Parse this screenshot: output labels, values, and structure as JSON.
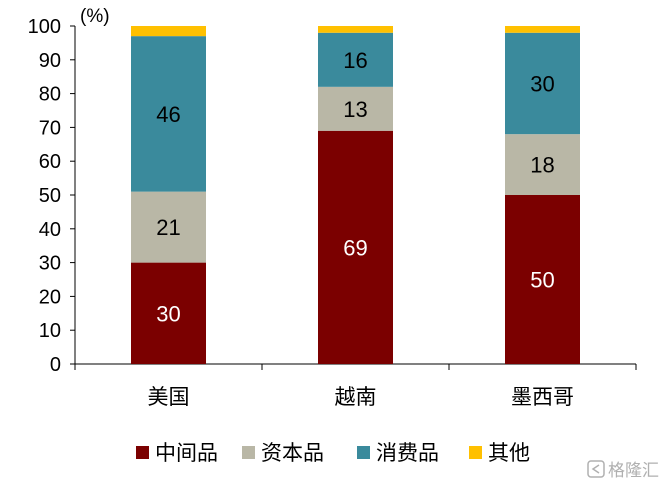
{
  "watermark": "格隆汇",
  "chart_data": {
    "type": "bar",
    "stacked": true,
    "unit_label": "(%)",
    "categories": [
      "美国",
      "越南",
      "墨西哥"
    ],
    "ylim": [
      0,
      100
    ],
    "yticks": [
      0,
      10,
      20,
      30,
      40,
      50,
      60,
      70,
      80,
      90,
      100
    ],
    "grid": false,
    "legend_position": "bottom",
    "series": [
      {
        "name": "中间品",
        "values": [
          30,
          69,
          50
        ],
        "color": "#7b0000",
        "label_color": "#ffffff"
      },
      {
        "name": "资本品",
        "values": [
          21,
          13,
          18
        ],
        "color": "#b9b7a6",
        "label_color": "#000000"
      },
      {
        "name": "消费品",
        "values": [
          46,
          16,
          30
        ],
        "color": "#3a8a9c",
        "label_color": "#000000"
      },
      {
        "name": "其他",
        "values": [
          3,
          2,
          2
        ],
        "color": "#ffc000",
        "label_color": "#000000",
        "show_labels": false
      }
    ]
  }
}
